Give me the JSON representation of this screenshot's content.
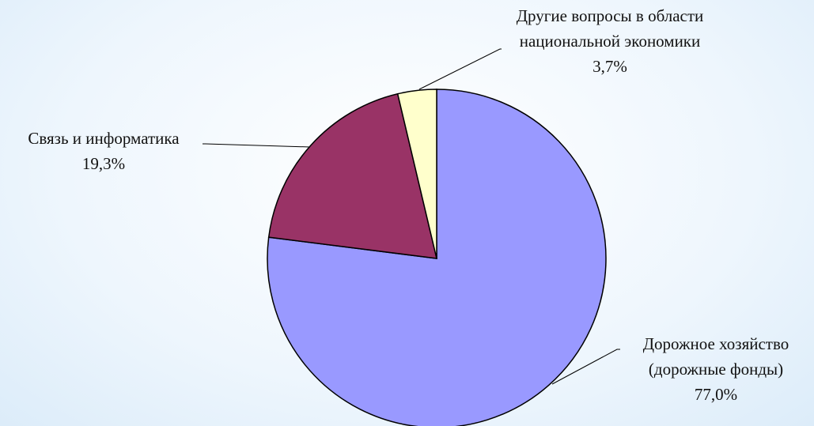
{
  "chart_data": {
    "type": "pie",
    "categories": [
      "Дорожное хозяйство (дорожные фонды)",
      "Связь и информатика",
      "Другие вопросы в области национальной экономики"
    ],
    "values": [
      77.0,
      19.3,
      3.7
    ],
    "value_labels": [
      "77,0%",
      "19,3%",
      "3,7%"
    ],
    "colors": [
      "#9999ff",
      "#993366",
      "#ffffcc"
    ]
  }
}
